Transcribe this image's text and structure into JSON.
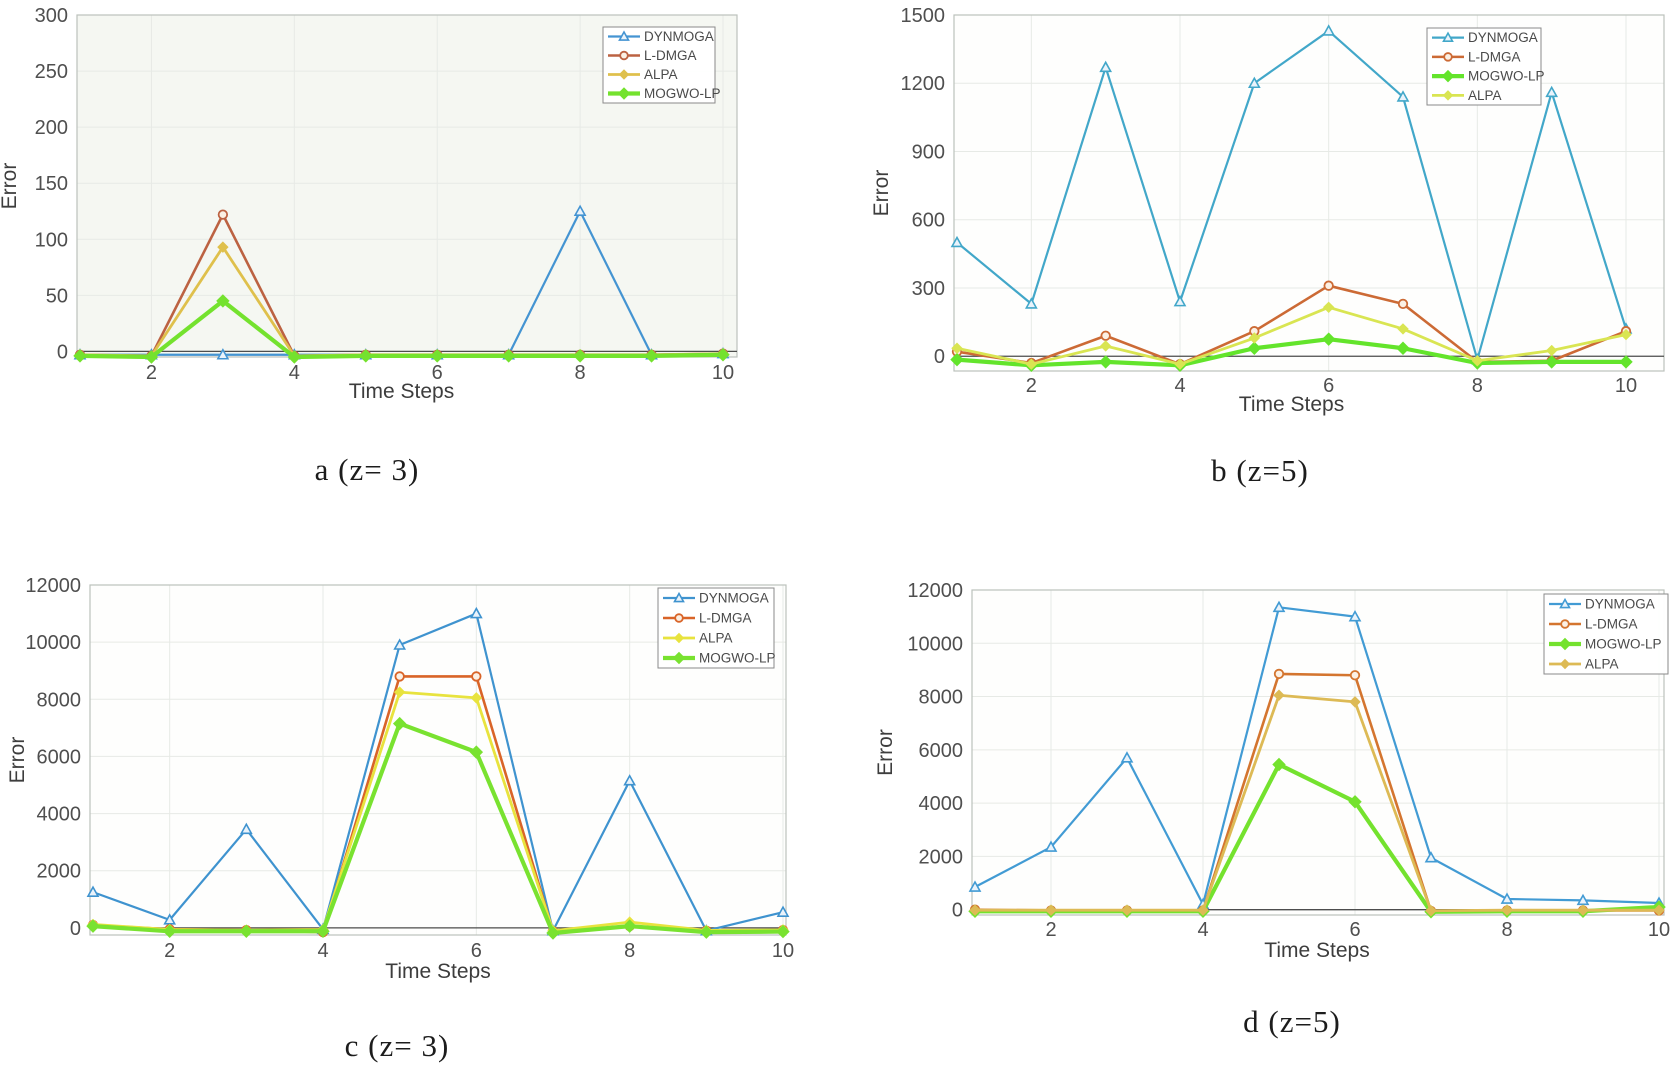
{
  "figure": {
    "xlabel": "Time Steps",
    "ylabel": "Error",
    "palette": {
      "dynmoga_blue": "#429bd4",
      "ldmga_orange": "#cc6633",
      "alpa_yellow": "#e0c24c",
      "mogwolp_green": "#74e22e"
    }
  },
  "chart_data": [
    {
      "id": "a",
      "type": "line",
      "caption": "a (z= 3)",
      "xlabel": "Time Steps",
      "ylabel": "Error",
      "x": [
        1,
        2,
        3,
        4,
        5,
        6,
        7,
        8,
        9,
        10
      ],
      "xticks": [
        2,
        4,
        6,
        8,
        10
      ],
      "yticks": [
        0,
        50,
        100,
        150,
        200,
        250,
        300
      ],
      "ylim": [
        -5,
        300
      ],
      "xlim": [
        1,
        10.2
      ],
      "grid": true,
      "legend_position": "top-right",
      "legend_order": [
        "DYNMOGA",
        "L-DMGA",
        "ALPA",
        "MOGWO-LP"
      ],
      "series": [
        {
          "name": "DYNMOGA",
          "color": "#4494d2",
          "marker": "triangle",
          "values": [
            -3,
            -3,
            -3,
            -3,
            -3,
            -3,
            -3,
            125,
            -3,
            -2
          ]
        },
        {
          "name": "L-DMGA",
          "color": "#bc6242",
          "marker": "circle",
          "values": [
            -3,
            -4,
            122,
            -4,
            -3,
            -3,
            -3,
            -3,
            -3,
            -2
          ]
        },
        {
          "name": "ALPA",
          "color": "#dfc04c",
          "marker": "diamond",
          "values": [
            -3,
            -4,
            93,
            -4,
            -3,
            -3,
            -3,
            -3,
            -3,
            -2
          ]
        },
        {
          "name": "MOGWO-LP",
          "color": "#74e22e",
          "marker": "diamond-filled",
          "values": [
            -4,
            -5,
            45,
            -5,
            -4,
            -4,
            -4,
            -4,
            -4,
            -3
          ]
        }
      ]
    },
    {
      "id": "b",
      "type": "line",
      "caption": "b (z=5)",
      "xlabel": "Time Steps",
      "ylabel": "Error",
      "x": [
        1,
        2,
        3,
        4,
        5,
        6,
        7,
        8,
        9,
        10
      ],
      "xticks": [
        2,
        4,
        6,
        8,
        10
      ],
      "yticks": [
        0,
        300,
        600,
        900,
        1200,
        1500
      ],
      "ylim": [
        -65,
        1500
      ],
      "xlim": [
        1,
        10.5
      ],
      "grid": true,
      "legend_position": "top-right",
      "legend_order": [
        "DYNMOGA",
        "L-DMGA",
        "MOGWO-LP",
        "ALPA"
      ],
      "series": [
        {
          "name": "DYNMOGA",
          "color": "#42a7c9",
          "marker": "triangle",
          "values": [
            500,
            230,
            1270,
            240,
            1200,
            1430,
            1140,
            -15,
            1160,
            120
          ]
        },
        {
          "name": "L-DMGA",
          "color": "#cc6a35",
          "marker": "circle",
          "values": [
            20,
            -30,
            90,
            -35,
            110,
            310,
            230,
            -25,
            -20,
            110
          ]
        },
        {
          "name": "MOGWO-LP",
          "color": "#63e42b",
          "marker": "diamond-filled",
          "values": [
            -15,
            -40,
            -25,
            -40,
            35,
            75,
            35,
            -30,
            -25,
            -25
          ]
        },
        {
          "name": "ALPA",
          "color": "#d9e552",
          "marker": "diamond",
          "values": [
            35,
            -35,
            45,
            -35,
            80,
            215,
            120,
            -20,
            25,
            95
          ]
        }
      ]
    },
    {
      "id": "c",
      "type": "line",
      "caption": "c (z= 3)",
      "xlabel": "Time Steps",
      "ylabel": "Error",
      "x": [
        1,
        2,
        3,
        4,
        5,
        6,
        7,
        8,
        9,
        10
      ],
      "xticks": [
        2,
        4,
        6,
        8,
        10
      ],
      "yticks": [
        0,
        2000,
        4000,
        6000,
        8000,
        10000,
        12000
      ],
      "ylim": [
        -250,
        12000
      ],
      "xlim": [
        1,
        10.1
      ],
      "grid": true,
      "legend_position": "top-right",
      "legend_order": [
        "DYNMOGA",
        "L-DMGA",
        "ALPA",
        "MOGWO-LP"
      ],
      "series": [
        {
          "name": "DYNMOGA",
          "color": "#3f93cf",
          "marker": "triangle",
          "values": [
            1250,
            280,
            3450,
            -50,
            9900,
            11000,
            -100,
            5150,
            -100,
            550
          ]
        },
        {
          "name": "L-DMGA",
          "color": "#d96428",
          "marker": "circle",
          "values": [
            100,
            -50,
            -80,
            -150,
            8800,
            8800,
            -120,
            60,
            -100,
            -80
          ]
        },
        {
          "name": "ALPA",
          "color": "#e8e33e",
          "marker": "diamond",
          "values": [
            120,
            -60,
            -80,
            -60,
            8250,
            8050,
            -100,
            200,
            -90,
            -70
          ]
        },
        {
          "name": "MOGWO-LP",
          "color": "#79e230",
          "marker": "diamond-filled",
          "values": [
            60,
            -120,
            -120,
            -120,
            7150,
            6150,
            -180,
            60,
            -150,
            -130
          ]
        }
      ]
    },
    {
      "id": "d",
      "type": "line",
      "caption": "d (z=5)",
      "xlabel": "Time Steps",
      "ylabel": "Error",
      "x": [
        1,
        2,
        3,
        4,
        5,
        6,
        7,
        8,
        9,
        10
      ],
      "xticks": [
        2,
        4,
        6,
        8,
        10
      ],
      "yticks": [
        0,
        2000,
        4000,
        6000,
        8000,
        10000,
        12000
      ],
      "ylim": [
        -200,
        12000
      ],
      "xlim": [
        1,
        10.1
      ],
      "grid": true,
      "legend_position": "top-right",
      "legend_order": [
        "DYNMOGA",
        "L-DMGA",
        "MOGWO-LP",
        "ALPA"
      ],
      "series": [
        {
          "name": "DYNMOGA",
          "color": "#429bd4",
          "marker": "triangle",
          "values": [
            850,
            2350,
            5700,
            200,
            11350,
            11000,
            1950,
            400,
            350,
            250
          ]
        },
        {
          "name": "L-DMGA",
          "color": "#d4752f",
          "marker": "circle",
          "values": [
            0,
            -30,
            -30,
            -30,
            8850,
            8800,
            -50,
            -30,
            -30,
            -30
          ]
        },
        {
          "name": "MOGWO-LP",
          "color": "#74e22e",
          "marker": "diamond-filled",
          "values": [
            -60,
            -60,
            -60,
            -60,
            5450,
            4050,
            -80,
            -60,
            -60,
            100
          ]
        },
        {
          "name": "ALPA",
          "color": "#ddba55",
          "marker": "diamond",
          "values": [
            -20,
            -20,
            -20,
            -20,
            8050,
            7800,
            -40,
            -20,
            -20,
            -20
          ]
        }
      ]
    }
  ]
}
